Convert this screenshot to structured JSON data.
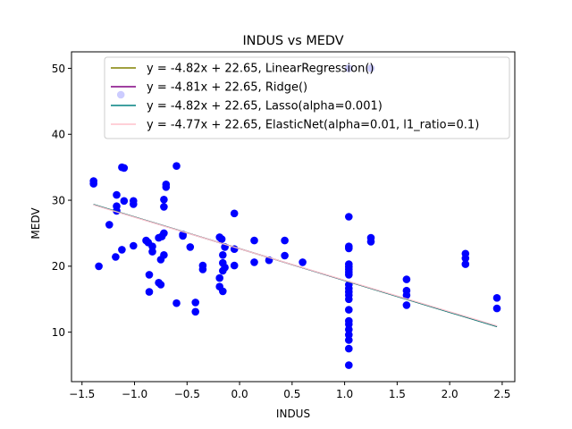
{
  "chart_data": {
    "type": "scatter",
    "title": "INDUS vs MEDV",
    "xlabel": "INDUS",
    "ylabel": "MEDV",
    "xlim": [
      -1.6,
      2.62
    ],
    "ylim": [
      2.5,
      52.5
    ],
    "xticks": [
      -1.5,
      -1.0,
      -0.5,
      0.0,
      0.5,
      1.0,
      1.5,
      2.0,
      2.5
    ],
    "xtick_labels": [
      "−1.5",
      "−1.0",
      "−0.5",
      "0.0",
      "0.5",
      "1.0",
      "1.5",
      "2.0",
      "2.5"
    ],
    "yticks": [
      10,
      20,
      30,
      40,
      50
    ],
    "ytick_labels": [
      "10",
      "20",
      "30",
      "40",
      "50"
    ],
    "grid": false,
    "legend_position": "top-right",
    "scatter": {
      "color": "#0000ff",
      "points": [
        [
          -1.39,
          32.9
        ],
        [
          -1.39,
          32.5
        ],
        [
          -1.34,
          20.0
        ],
        [
          -1.24,
          26.3
        ],
        [
          -1.18,
          21.4
        ],
        [
          -1.17,
          30.8
        ],
        [
          -1.17,
          29.1
        ],
        [
          -1.17,
          28.4
        ],
        [
          -1.12,
          22.5
        ],
        [
          -1.12,
          35.0
        ],
        [
          -1.1,
          34.9
        ],
        [
          -1.1,
          29.9
        ],
        [
          -1.13,
          46.0
        ],
        [
          -1.01,
          29.9
        ],
        [
          -1.01,
          29.4
        ],
        [
          -1.01,
          23.1
        ],
        [
          -0.89,
          23.9
        ],
        [
          -0.87,
          23.6
        ],
        [
          -0.86,
          18.7
        ],
        [
          -0.86,
          16.1
        ],
        [
          -0.83,
          22.2
        ],
        [
          -0.83,
          23.0
        ],
        [
          -0.77,
          24.3
        ],
        [
          -0.77,
          17.5
        ],
        [
          -0.75,
          17.2
        ],
        [
          -0.75,
          21.0
        ],
        [
          -0.74,
          24.5
        ],
        [
          -0.72,
          25.0
        ],
        [
          -0.72,
          21.7
        ],
        [
          -0.72,
          30.1
        ],
        [
          -0.72,
          29.0
        ],
        [
          -0.7,
          32.0
        ],
        [
          -0.7,
          32.4
        ],
        [
          -0.6,
          35.2
        ],
        [
          -0.6,
          14.4
        ],
        [
          -0.54,
          24.6
        ],
        [
          -0.54,
          24.8
        ],
        [
          -0.47,
          22.9
        ],
        [
          -0.42,
          14.5
        ],
        [
          -0.42,
          13.1
        ],
        [
          -0.35,
          20.1
        ],
        [
          -0.35,
          19.5
        ],
        [
          -0.19,
          24.4
        ],
        [
          -0.19,
          18.2
        ],
        [
          -0.19,
          16.9
        ],
        [
          -0.17,
          24.1
        ],
        [
          -0.16,
          21.7
        ],
        [
          -0.16,
          20.5
        ],
        [
          -0.16,
          19.3
        ],
        [
          -0.16,
          16.2
        ],
        [
          -0.14,
          22.9
        ],
        [
          -0.14,
          19.8
        ],
        [
          -0.05,
          28.0
        ],
        [
          -0.05,
          20.1
        ],
        [
          -0.05,
          22.6
        ],
        [
          0.14,
          20.6
        ],
        [
          0.14,
          23.9
        ],
        [
          0.28,
          20.9
        ],
        [
          0.43,
          23.9
        ],
        [
          0.43,
          21.6
        ],
        [
          0.6,
          20.6
        ],
        [
          1.04,
          27.5
        ],
        [
          1.04,
          23.0
        ],
        [
          1.04,
          22.7
        ],
        [
          1.04,
          20.3
        ],
        [
          1.04,
          19.9
        ],
        [
          1.04,
          19.5
        ],
        [
          1.04,
          19.1
        ],
        [
          1.04,
          18.7
        ],
        [
          1.04,
          17.2
        ],
        [
          1.04,
          16.6
        ],
        [
          1.04,
          16.1
        ],
        [
          1.04,
          15.6
        ],
        [
          1.04,
          15.0
        ],
        [
          1.04,
          13.4
        ],
        [
          1.04,
          11.7
        ],
        [
          1.04,
          11.2
        ],
        [
          1.04,
          10.4
        ],
        [
          1.04,
          9.6
        ],
        [
          1.04,
          8.8
        ],
        [
          1.04,
          7.5
        ],
        [
          1.04,
          5.0
        ],
        [
          1.04,
          50.0
        ],
        [
          1.25,
          50.0
        ],
        [
          1.25,
          24.3
        ],
        [
          1.25,
          23.7
        ],
        [
          1.59,
          18.0
        ],
        [
          1.59,
          16.3
        ],
        [
          1.59,
          15.6
        ],
        [
          1.59,
          14.1
        ],
        [
          2.15,
          21.9
        ],
        [
          2.15,
          21.2
        ],
        [
          2.15,
          20.3
        ],
        [
          2.45,
          15.2
        ],
        [
          2.45,
          13.6
        ]
      ]
    },
    "lines": [
      {
        "name": "y = -4.82x + 22.65, LinearRegression()",
        "slope": -4.82,
        "intercept": 22.65,
        "x_range": [
          -1.39,
          2.45
        ],
        "color": "#808000"
      },
      {
        "name": "y = -4.81x + 22.65, Ridge()",
        "slope": -4.81,
        "intercept": 22.65,
        "x_range": [
          -1.39,
          2.45
        ],
        "color": "#800080"
      },
      {
        "name": "y = -4.82x + 22.65, Lasso(alpha=0.001)",
        "slope": -4.82,
        "intercept": 22.65,
        "x_range": [
          -1.39,
          2.45
        ],
        "color": "#008080"
      },
      {
        "name": "y = -4.77x + 22.65, ElasticNet(alpha=0.01, l1_ratio=0.1)",
        "slope": -4.77,
        "intercept": 22.65,
        "x_range": [
          -1.39,
          2.45
        ],
        "color": "#ffc0cb"
      }
    ]
  }
}
